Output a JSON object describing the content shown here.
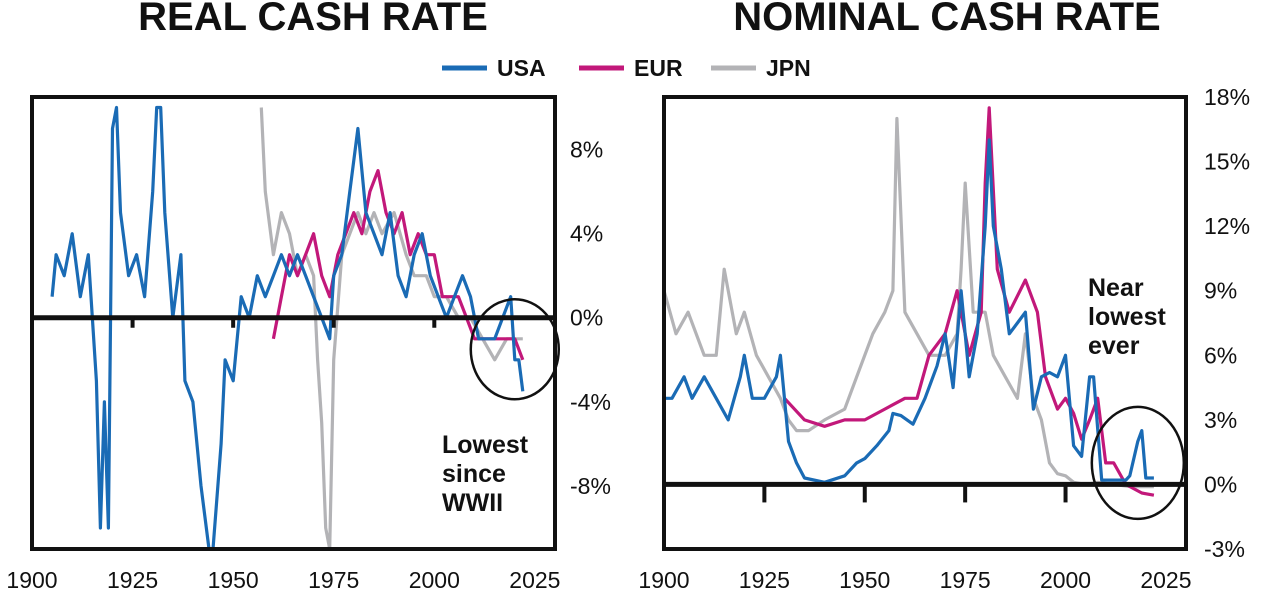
{
  "colors": {
    "USA": "#1a6bb5",
    "EUR": "#c2187a",
    "JPN": "#b3b3b6",
    "ink": "#111111"
  },
  "legend": [
    {
      "label": "USA",
      "color": "#1a6bb5"
    },
    {
      "label": "EUR",
      "color": "#c2187a"
    },
    {
      "label": "JPN",
      "color": "#b3b3b6"
    }
  ],
  "chart_data": [
    {
      "type": "line",
      "title": "REAL CASH RATE",
      "xlim": [
        1900,
        2030
      ],
      "ylim": [
        -11,
        10.5
      ],
      "xticks": [
        1900,
        1925,
        1950,
        1975,
        2000,
        2025
      ],
      "xtick_labels": [
        "1900",
        "1925",
        "1950",
        "1975",
        "2000",
        "2025"
      ],
      "yticks": [
        8,
        4,
        0,
        -4,
        -8
      ],
      "ytick_labels": [
        "8%",
        "4%",
        "0%",
        "-4%",
        "-8%"
      ],
      "zero_line": 0,
      "annotation": {
        "lines": [
          "Lowest",
          "since",
          "WWII"
        ],
        "circle_center": [
          2020,
          -1.5
        ]
      },
      "series": [
        {
          "name": "USA",
          "color": "#1a6bb5",
          "x": [
            1905,
            1906,
            1908,
            1910,
            1912,
            1914,
            1916,
            1917,
            1918,
            1919,
            1920,
            1921,
            1922,
            1924,
            1926,
            1928,
            1930,
            1931,
            1932,
            1933,
            1935,
            1937,
            1938,
            1940,
            1942,
            1944,
            1945,
            1947,
            1948,
            1950,
            1952,
            1954,
            1956,
            1958,
            1960,
            1962,
            1964,
            1966,
            1968,
            1970,
            1972,
            1974,
            1975,
            1977,
            1979,
            1981,
            1983,
            1985,
            1987,
            1989,
            1991,
            1993,
            1995,
            1997,
            1999,
            2001,
            2003,
            2005,
            2007,
            2009,
            2011,
            2013,
            2015,
            2017,
            2019,
            2020,
            2021,
            2022
          ],
          "y": [
            1,
            3,
            2,
            4,
            1,
            3,
            -3,
            -10,
            -4,
            -10,
            9,
            10,
            5,
            2,
            3,
            1,
            6,
            10,
            10,
            5,
            0,
            3,
            -3,
            -4,
            -8,
            -11,
            -11,
            -6,
            -2,
            -3,
            1,
            0,
            2,
            1,
            2,
            3,
            2,
            3,
            2,
            1,
            0,
            -1,
            2,
            3,
            6,
            9,
            5,
            4,
            3,
            5,
            2,
            1,
            3,
            4,
            2,
            1,
            0,
            1,
            2,
            1,
            -1,
            -1,
            -1,
            0,
            1,
            -2,
            -2,
            -3.5
          ]
        },
        {
          "name": "EUR",
          "color": "#c2187a",
          "x": [
            1960,
            1962,
            1964,
            1966,
            1968,
            1970,
            1972,
            1974,
            1976,
            1978,
            1980,
            1982,
            1984,
            1986,
            1988,
            1990,
            1992,
            1994,
            1996,
            1998,
            2000,
            2002,
            2004,
            2006,
            2008,
            2010,
            2012,
            2014,
            2016,
            2018,
            2020,
            2022
          ],
          "y": [
            -1,
            1,
            3,
            2,
            3,
            4,
            2,
            1,
            3,
            4,
            5,
            4,
            6,
            7,
            5,
            4,
            5,
            3,
            4,
            3,
            3,
            1,
            1,
            1,
            0,
            -1,
            -1,
            -1,
            -1,
            -1,
            -1,
            -2
          ]
        },
        {
          "name": "JPN",
          "color": "#b3b3b6",
          "x": [
            1957,
            1958,
            1960,
            1962,
            1964,
            1966,
            1968,
            1970,
            1971,
            1972,
            1973,
            1974,
            1975,
            1977,
            1979,
            1981,
            1983,
            1985,
            1987,
            1990,
            1993,
            1995,
            1998,
            2000,
            2003,
            2006,
            2009,
            2012,
            2015,
            2018,
            2022
          ],
          "y": [
            10,
            6,
            3,
            5,
            4,
            2,
            3,
            2,
            -2,
            -5,
            -10,
            -11,
            -2,
            3,
            4,
            5,
            4,
            5,
            4,
            5,
            3,
            2,
            2,
            1,
            1,
            0,
            0,
            -1,
            -2,
            -1,
            -1
          ]
        }
      ]
    },
    {
      "type": "line",
      "title": "NOMINAL CASH RATE",
      "xlim": [
        1900,
        2030
      ],
      "ylim": [
        -3,
        18
      ],
      "xticks": [
        1900,
        1925,
        1950,
        1975,
        2000,
        2025
      ],
      "xtick_labels": [
        "1900",
        "1925",
        "1950",
        "1975",
        "2000",
        "2025"
      ],
      "yticks": [
        18,
        15,
        12,
        9,
        6,
        3,
        0,
        -3
      ],
      "ytick_labels": [
        "18%",
        "15%",
        "12%",
        "9%",
        "6%",
        "3%",
        "0%",
        "-3%"
      ],
      "zero_line": 0,
      "annotation": {
        "lines": [
          "Near",
          "lowest",
          "ever"
        ],
        "circle_center": [
          2018,
          1
        ]
      },
      "series": [
        {
          "name": "USA",
          "color": "#1a6bb5",
          "x": [
            1900,
            1902,
            1905,
            1907,
            1910,
            1913,
            1916,
            1919,
            1920,
            1922,
            1925,
            1928,
            1929,
            1931,
            1933,
            1935,
            1940,
            1945,
            1948,
            1950,
            1953,
            1956,
            1957,
            1959,
            1962,
            1965,
            1968,
            1970,
            1972,
            1974,
            1976,
            1978,
            1980,
            1981,
            1982,
            1984,
            1986,
            1988,
            1990,
            1992,
            1994,
            1996,
            1998,
            2000,
            2002,
            2004,
            2006,
            2007,
            2009,
            2012,
            2015,
            2016,
            2017,
            2018,
            2019,
            2020,
            2022
          ],
          "y": [
            4,
            4,
            5,
            4,
            5,
            4,
            3,
            5,
            6,
            4,
            4,
            5,
            6,
            2,
            1,
            0.3,
            0.1,
            0.4,
            1,
            1.2,
            1.8,
            2.5,
            3.3,
            3.2,
            2.8,
            4,
            5.5,
            7,
            4.5,
            9,
            5,
            7,
            12,
            16,
            12,
            10,
            7,
            7.5,
            8,
            3.5,
            5,
            5.2,
            5,
            6,
            1.8,
            1.3,
            5,
            5,
            0.2,
            0.2,
            0.2,
            0.4,
            1.2,
            2,
            2.5,
            0.3,
            0.3
          ]
        },
        {
          "name": "EUR",
          "color": "#c2187a",
          "x": [
            1930,
            1935,
            1940,
            1945,
            1950,
            1955,
            1960,
            1963,
            1966,
            1970,
            1973,
            1976,
            1979,
            1980,
            1981,
            1983,
            1986,
            1990,
            1993,
            1995,
            1998,
            2000,
            2002,
            2004,
            2006,
            2008,
            2010,
            2012,
            2015,
            2019,
            2022
          ],
          "y": [
            4,
            3,
            2.7,
            3,
            3,
            3.5,
            4,
            4,
            6,
            7,
            9,
            6,
            8,
            14,
            17.5,
            10,
            8,
            9.5,
            8,
            5,
            3.5,
            4,
            3.3,
            2.1,
            3,
            4,
            1,
            1,
            0,
            -0.4,
            -0.5
          ]
        },
        {
          "name": "JPN",
          "color": "#b3b3b6",
          "x": [
            1900,
            1903,
            1906,
            1910,
            1913,
            1915,
            1918,
            1920,
            1923,
            1926,
            1929,
            1931,
            1933,
            1936,
            1940,
            1945,
            1948,
            1952,
            1955,
            1957,
            1958,
            1960,
            1963,
            1966,
            1970,
            1973,
            1974,
            1975,
            1977,
            1980,
            1982,
            1985,
            1988,
            1990,
            1992,
            1994,
            1996,
            1998,
            2000,
            2002,
            2005,
            2008,
            2012,
            2016,
            2022
          ],
          "y": [
            9,
            7,
            8,
            6,
            6,
            10,
            7,
            8,
            6,
            5,
            4,
            3,
            2.5,
            2.5,
            3,
            3.5,
            5,
            7,
            8,
            9,
            17,
            8,
            7,
            6,
            6,
            7,
            10,
            14,
            8,
            8,
            6,
            5,
            4,
            7,
            4,
            3,
            1,
            0.5,
            0.4,
            0.1,
            0,
            0.1,
            0,
            -0.1,
            -0.1
          ]
        }
      ]
    }
  ]
}
